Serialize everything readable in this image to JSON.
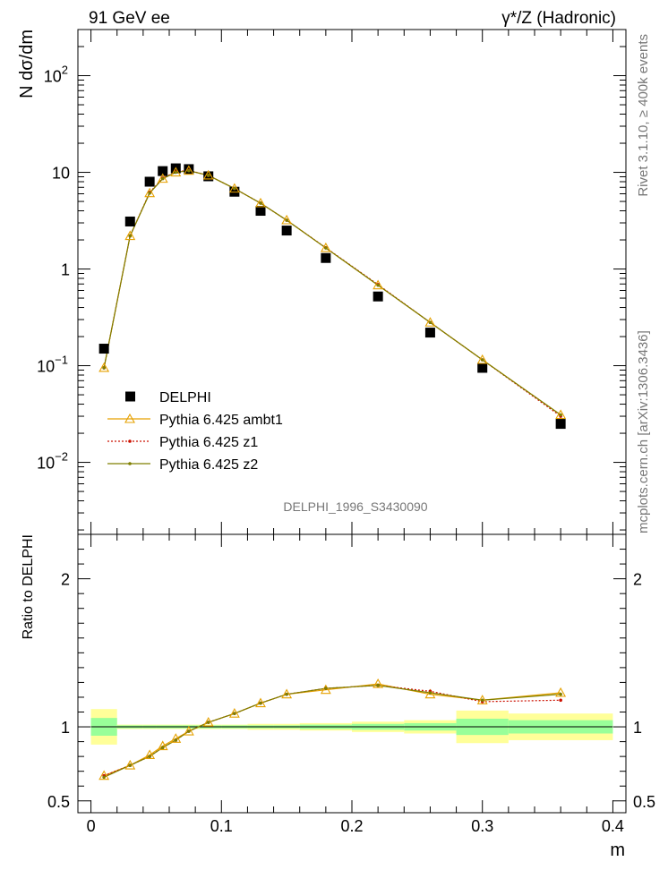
{
  "header": {
    "left_title": "91 GeV ee",
    "right_title": "γ*/Z (Hadronic)"
  },
  "side_labels": {
    "rivet": "Rivet 3.1.10, ≥ 400k events",
    "source": "mcplots.cern.ch [arXiv:1306.3436]"
  },
  "watermark": "DELPHI_1996_S3430090",
  "colors": {
    "data": "#000000",
    "ambt1": "#e6a100",
    "z1": "#cc1100",
    "z2": "#7f7f00",
    "band_stat": "#99ff99",
    "band_total": "#ffff99"
  },
  "chart_data": [
    {
      "type": "line",
      "panel": "main",
      "ylabel": "N dσ/dm",
      "yscale": "log",
      "ylim": [
        0.0018,
        300
      ],
      "xlim": [
        -0.01,
        0.41
      ],
      "yticks": [
        {
          "value": 0.01,
          "base": "10",
          "exp": "−2"
        },
        {
          "value": 0.1,
          "base": "10",
          "exp": "−1"
        },
        {
          "value": 1,
          "base": "1",
          "exp": ""
        },
        {
          "value": 10,
          "base": "10",
          "exp": ""
        },
        {
          "value": 100,
          "base": "10",
          "exp": "2"
        }
      ],
      "x": [
        0.01,
        0.03,
        0.045,
        0.055,
        0.065,
        0.075,
        0.09,
        0.11,
        0.13,
        0.15,
        0.18,
        0.22,
        0.26,
        0.3,
        0.36
      ],
      "series": [
        {
          "name": "DELPHI",
          "key": "data",
          "marker": "square",
          "values": [
            0.15,
            3.1,
            8.0,
            10.3,
            11.0,
            10.8,
            9.1,
            6.3,
            4.0,
            2.5,
            1.3,
            0.52,
            0.22,
            0.095,
            0.025
          ]
        },
        {
          "name": "Pythia 6.425 ambt1",
          "key": "ambt1",
          "marker": "triangle",
          "values": [
            0.095,
            2.2,
            6.1,
            8.6,
            10.0,
            10.4,
            9.3,
            6.8,
            4.8,
            3.2,
            1.65,
            0.68,
            0.28,
            0.115,
            0.031
          ]
        },
        {
          "name": "Pythia 6.425 z1",
          "key": "z1",
          "marker": "dot",
          "values": [
            0.095,
            2.2,
            6.2,
            8.7,
            10.1,
            10.5,
            9.3,
            6.8,
            4.8,
            3.2,
            1.66,
            0.69,
            0.28,
            0.115,
            0.03
          ]
        },
        {
          "name": "Pythia 6.425 z2",
          "key": "z2",
          "marker": "dot",
          "values": [
            0.095,
            2.2,
            6.1,
            8.6,
            10.0,
            10.4,
            9.3,
            6.8,
            4.8,
            3.2,
            1.65,
            0.68,
            0.28,
            0.115,
            0.031
          ]
        }
      ],
      "legend": "lower-left"
    },
    {
      "type": "line",
      "panel": "ratio",
      "ylabel": "Ratio to DELPHI",
      "xlabel": "m",
      "ylim": [
        0.42,
        2.3
      ],
      "yticks": [
        0.5,
        1,
        2
      ],
      "xlim": [
        -0.01,
        0.41
      ],
      "xticks": [
        0,
        0.1,
        0.2,
        0.3,
        0.4
      ],
      "bands": [
        {
          "x": [
            0,
            0.02
          ],
          "stat": [
            0.94,
            1.06
          ],
          "total": [
            0.88,
            1.12
          ]
        },
        {
          "x": [
            0.02,
            0.04
          ],
          "stat": [
            0.99,
            1.01
          ],
          "total": [
            0.985,
            1.015
          ]
        },
        {
          "x": [
            0.04,
            0.05
          ],
          "stat": [
            0.99,
            1.01
          ],
          "total": [
            0.985,
            1.015
          ]
        },
        {
          "x": [
            0.05,
            0.06
          ],
          "stat": [
            0.99,
            1.01
          ],
          "total": [
            0.985,
            1.015
          ]
        },
        {
          "x": [
            0.06,
            0.07
          ],
          "stat": [
            0.99,
            1.01
          ],
          "total": [
            0.985,
            1.015
          ]
        },
        {
          "x": [
            0.07,
            0.08
          ],
          "stat": [
            0.99,
            1.01
          ],
          "total": [
            0.985,
            1.015
          ]
        },
        {
          "x": [
            0.08,
            0.1
          ],
          "stat": [
            0.99,
            1.01
          ],
          "total": [
            0.985,
            1.015
          ]
        },
        {
          "x": [
            0.1,
            0.12
          ],
          "stat": [
            0.99,
            1.01
          ],
          "total": [
            0.985,
            1.015
          ]
        },
        {
          "x": [
            0.12,
            0.14
          ],
          "stat": [
            0.99,
            1.01
          ],
          "total": [
            0.98,
            1.02
          ]
        },
        {
          "x": [
            0.14,
            0.16
          ],
          "stat": [
            0.99,
            1.01
          ],
          "total": [
            0.98,
            1.02
          ]
        },
        {
          "x": [
            0.16,
            0.2
          ],
          "stat": [
            0.985,
            1.015
          ],
          "total": [
            0.975,
            1.025
          ]
        },
        {
          "x": [
            0.2,
            0.24
          ],
          "stat": [
            0.98,
            1.02
          ],
          "total": [
            0.965,
            1.035
          ]
        },
        {
          "x": [
            0.24,
            0.28
          ],
          "stat": [
            0.975,
            1.025
          ],
          "total": [
            0.955,
            1.045
          ]
        },
        {
          "x": [
            0.28,
            0.32
          ],
          "stat": [
            0.945,
            1.055
          ],
          "total": [
            0.89,
            1.11
          ]
        },
        {
          "x": [
            0.32,
            0.4
          ],
          "stat": [
            0.955,
            1.045
          ],
          "total": [
            0.91,
            1.09
          ]
        }
      ],
      "x": [
        0.01,
        0.03,
        0.045,
        0.055,
        0.065,
        0.075,
        0.09,
        0.11,
        0.13,
        0.15,
        0.18,
        0.22,
        0.26,
        0.3,
        0.36
      ],
      "series": [
        {
          "name": "Pythia 6.425 ambt1",
          "key": "ambt1",
          "marker": "triangle",
          "values": [
            0.67,
            0.74,
            0.81,
            0.87,
            0.92,
            0.97,
            1.03,
            1.09,
            1.16,
            1.22,
            1.25,
            1.29,
            1.22,
            1.18,
            1.23
          ]
        },
        {
          "name": "Pythia 6.425 z1",
          "key": "z1",
          "marker": "dot",
          "values": [
            0.67,
            0.74,
            0.8,
            0.86,
            0.91,
            0.97,
            1.03,
            1.09,
            1.16,
            1.22,
            1.26,
            1.28,
            1.24,
            1.17,
            1.18
          ]
        },
        {
          "name": "Pythia 6.425 z2",
          "key": "z2",
          "marker": "dot",
          "values": [
            0.66,
            0.74,
            0.8,
            0.86,
            0.91,
            0.97,
            1.03,
            1.09,
            1.16,
            1.22,
            1.26,
            1.28,
            1.23,
            1.18,
            1.22
          ]
        }
      ]
    }
  ]
}
